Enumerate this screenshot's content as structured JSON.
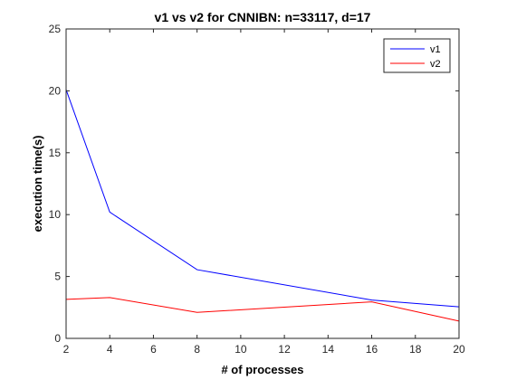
{
  "chart_data": {
    "type": "line",
    "title": "v1 vs v2 for CNNIBN: n=33117, d=17",
    "xlabel": "# of processes",
    "ylabel": "execution time(s)",
    "xlim": [
      2,
      20
    ],
    "ylim": [
      0,
      25
    ],
    "xticks": [
      2,
      4,
      6,
      8,
      10,
      12,
      14,
      16,
      18,
      20
    ],
    "yticks": [
      0,
      5,
      10,
      15,
      20,
      25
    ],
    "grid": false,
    "legend_position": "top-right",
    "x": [
      2,
      4,
      8,
      16,
      20
    ],
    "series": [
      {
        "name": "v1",
        "color": "#0000ff",
        "values": [
          20.1,
          10.2,
          5.55,
          3.1,
          2.55
        ]
      },
      {
        "name": "v2",
        "color": "#ff0000",
        "values": [
          3.15,
          3.3,
          2.1,
          2.95,
          1.4
        ]
      }
    ]
  }
}
